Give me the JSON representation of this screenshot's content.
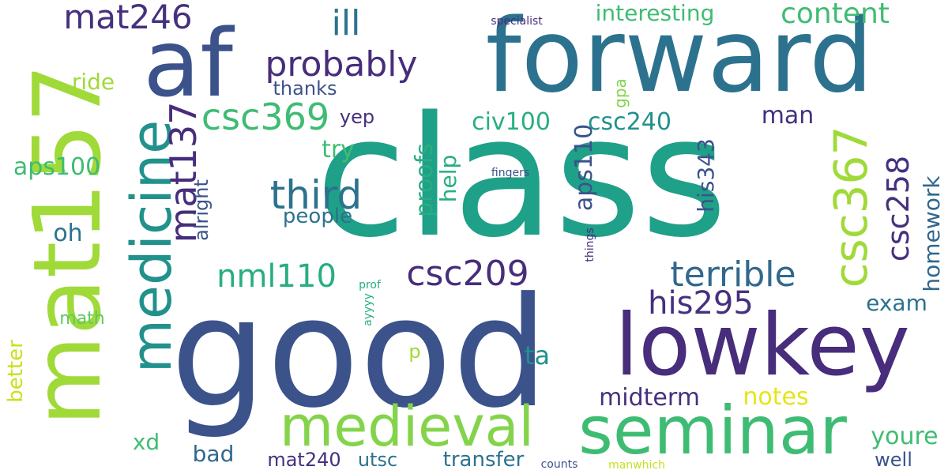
{
  "wordcloud": {
    "words": [
      "class",
      "good",
      "forward",
      "af",
      "mat157",
      "lowkey",
      "seminar",
      "medieval",
      "medicine",
      "third",
      "csc369",
      "csc367",
      "mat137",
      "probably",
      "mat246",
      "terrible",
      "csc209",
      "his295",
      "nml110",
      "csc258",
      "content",
      "ill",
      "interesting",
      "civ100",
      "csc240",
      "aps110",
      "his343",
      "proofs",
      "help",
      "try",
      "yep",
      "thanks",
      "ride",
      "aps100",
      "oh",
      "people",
      "alright",
      "homework",
      "exam",
      "man",
      "gpa",
      "notes",
      "midterm",
      "youre",
      "well",
      "transfer",
      "mat240",
      "utsc",
      "bad",
      "xd",
      "ta",
      "p",
      "math",
      "better",
      "prof",
      "ayyyy",
      "things",
      "fingers",
      "specialist",
      "counts",
      "manwhich"
    ],
    "colors": {
      "navy": "#3b528b",
      "indigo": "#472d7b",
      "purple": "#46307e",
      "blue": "#31688e",
      "steel": "#2c728e",
      "teal": "#21918c",
      "green_teal": "#1fa088",
      "green": "#28ae80",
      "mint": "#3fbc73",
      "light_green": "#5ec962",
      "lime": "#84d44b",
      "yellow_green": "#a0da39",
      "yellow": "#c8e020",
      "bright_yellow": "#e7e419"
    }
  }
}
